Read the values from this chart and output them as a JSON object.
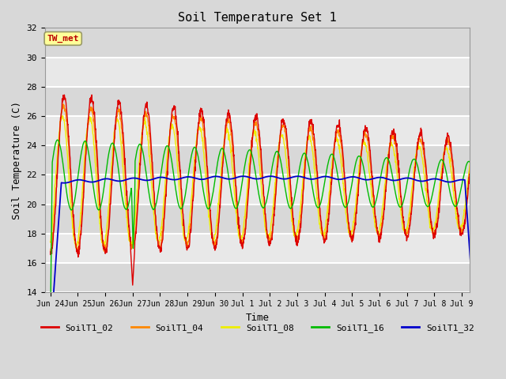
{
  "title": "Soil Temperature Set 1",
  "xlabel": "Time",
  "ylabel": "Soil Temperature (C)",
  "annotation": "TW_met",
  "ylim": [
    14,
    32
  ],
  "background_color": "#e8e8e8",
  "grid_color": "#ffffff",
  "series_colors": {
    "SoilT1_02": "#dd0000",
    "SoilT1_04": "#ff8800",
    "SoilT1_08": "#eeee00",
    "SoilT1_16": "#00bb00",
    "SoilT1_32": "#0000cc"
  },
  "legend_labels": [
    "SoilT1_02",
    "SoilT1_04",
    "SoilT1_08",
    "SoilT1_16",
    "SoilT1_32"
  ],
  "x_tick_labels": [
    "Jun 24",
    "Jun 25",
    "Jun 26",
    "Jun 27",
    "Jun 28",
    "Jun 29",
    "Jun 30",
    "Jul 1",
    "Jul 2",
    "Jul 3",
    "Jul 4",
    "Jul 5",
    "Jul 6",
    "Jul 7",
    "Jul 8",
    "Jul 9"
  ],
  "font_family": "monospace",
  "fig_width": 6.4,
  "fig_height": 4.8,
  "dpi": 100
}
